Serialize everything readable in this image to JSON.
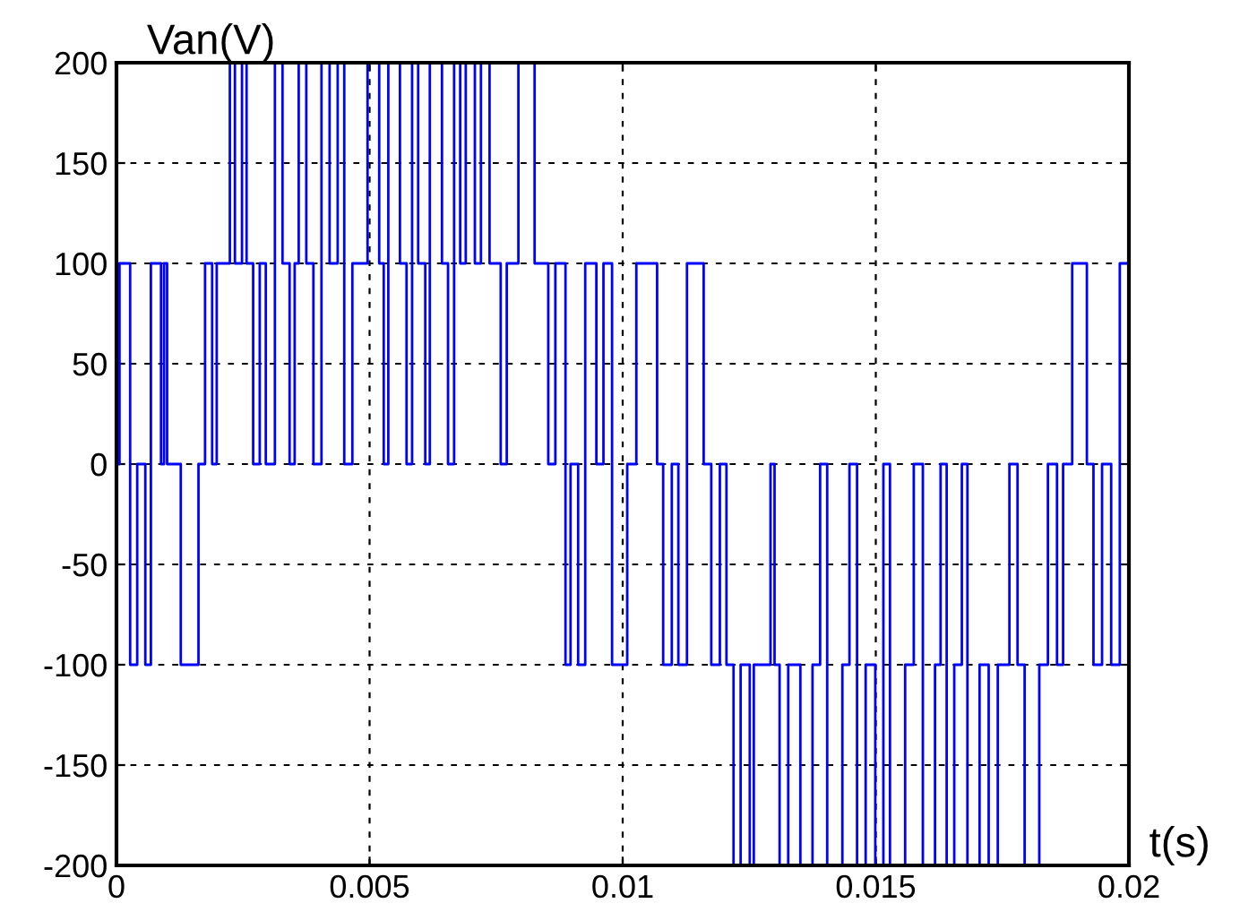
{
  "chart_data": {
    "type": "step",
    "ylabel": "Van(V)",
    "xlabel": "t(s)",
    "xlim": [
      0,
      0.02
    ],
    "ylim": [
      -200,
      200
    ],
    "xticks": [
      0,
      0.005,
      0.01,
      0.015,
      0.02
    ],
    "yticks": [
      -200,
      -150,
      -100,
      -50,
      0,
      50,
      100,
      150,
      200
    ],
    "grid": true,
    "line_style": "solid",
    "marker": "none",
    "series": [
      {
        "color": "#0000ff",
        "x": [
          0,
          6e-05,
          0.00027,
          0.00041,
          0.00057,
          0.00068,
          0.00088,
          0.00094,
          0.001,
          0.00127,
          0.00162,
          0.00175,
          0.00189,
          0.00198,
          0.00224,
          0.00234,
          0.00248,
          0.00257,
          0.0027,
          0.00283,
          0.00295,
          0.00313,
          0.00328,
          0.00342,
          0.00352,
          0.0036,
          0.00375,
          0.00389,
          0.00405,
          0.00421,
          0.00437,
          0.0045,
          0.00466,
          0.00496,
          0.00519,
          0.00528,
          0.00537,
          0.0056,
          0.00573,
          0.00584,
          0.00596,
          0.0061,
          0.00619,
          0.00643,
          0.00655,
          0.00667,
          0.00679,
          0.0069,
          0.00708,
          0.0072,
          0.00737,
          0.00759,
          0.00771,
          0.00794,
          0.00826,
          0.00853,
          0.00867,
          0.00887,
          0.00897,
          0.00912,
          0.00926,
          0.00948,
          0.00962,
          0.00979,
          0.01009,
          0.01027,
          0.01068,
          0.0108,
          0.01097,
          0.0111,
          0.01127,
          0.0116,
          0.01175,
          0.01192,
          0.01205,
          0.01219,
          0.01233,
          0.01251,
          0.01259,
          0.01292,
          0.013,
          0.0131,
          0.01327,
          0.01351,
          0.01375,
          0.0139,
          0.01404,
          0.01434,
          0.01448,
          0.01463,
          0.0148,
          0.01499,
          0.01515,
          0.01528,
          0.01558,
          0.01575,
          0.01593,
          0.01617,
          0.01628,
          0.0164,
          0.01655,
          0.0167,
          0.01681,
          0.01705,
          0.01723,
          0.01741,
          0.01764,
          0.0178,
          0.01794,
          0.01823,
          0.0184,
          0.01858,
          0.0187,
          0.01888,
          0.01917,
          0.0193,
          0.01947,
          0.01965,
          0.01982,
          0.02
        ],
        "values": [
          0,
          100,
          -100,
          0,
          -100,
          100,
          0,
          100,
          0,
          -100,
          0,
          100,
          0,
          100,
          200,
          100,
          200,
          100,
          0,
          100,
          0,
          200,
          100,
          0,
          100,
          200,
          100,
          0,
          200,
          100,
          200,
          0,
          100,
          200,
          100,
          0,
          200,
          100,
          0,
          200,
          100,
          0,
          200,
          100,
          0,
          200,
          100,
          200,
          100,
          200,
          100,
          0,
          100,
          200,
          100,
          0,
          100,
          -100,
          0,
          -100,
          100,
          0,
          100,
          -100,
          0,
          100,
          0,
          -100,
          0,
          -100,
          100,
          0,
          -100,
          0,
          -100,
          -200,
          -100,
          -200,
          -100,
          0,
          -100,
          -200,
          -100,
          -200,
          -100,
          0,
          -200,
          -100,
          0,
          -200,
          -100,
          -200,
          0,
          -200,
          -100,
          0,
          -200,
          -100,
          0,
          -200,
          -100,
          0,
          -200,
          -100,
          -200,
          -100,
          0,
          -100,
          -200,
          -100,
          0,
          -100,
          0,
          100,
          0,
          -100,
          0,
          -100,
          100,
          100
        ]
      }
    ]
  }
}
